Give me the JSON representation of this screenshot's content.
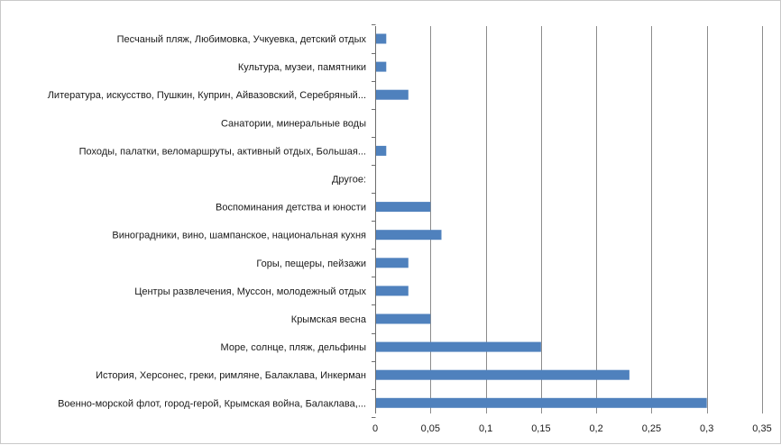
{
  "chart_data": {
    "type": "bar",
    "orientation": "horizontal",
    "title": "",
    "xlabel": "",
    "ylabel": "",
    "categories": [
      "Песчаный пляж, Любимовка, Учкуевка, детский отдых",
      "Культура, музеи, памятники",
      "Литература, искусство, Пушкин, Куприн, Айвазовский, Серебряный...",
      "Санатории, минеральные воды",
      "Походы, палатки, веломаршруты, активный отдых, Большая...",
      "Другое:",
      "Воспоминания детства и юности",
      "Виноградники, вино, шампанское, национальная кухня",
      "Горы, пещеры, пейзажи",
      "Центры развлечения, Муссон, молодежный отдых",
      "Крымская весна",
      "Море, солнце, пляж, дельфины",
      "История, Херсонес, греки, римляне, Балаклава, Инкерман",
      "Военно-морской флот, город-герой, Крымская война, Балаклава,..."
    ],
    "values": [
      0.01,
      0.01,
      0.03,
      0,
      0.01,
      0,
      0.05,
      0.06,
      0.03,
      0.03,
      0.05,
      0.15,
      0.23,
      0.3
    ],
    "xlim": [
      0,
      0.35
    ],
    "xticks": [
      0,
      0.05,
      0.1,
      0.15,
      0.2,
      0.25,
      0.3,
      0.35
    ],
    "xtick_labels": [
      "0",
      "0,05",
      "0,1",
      "0,15",
      "0,2",
      "0,25",
      "0,3",
      "0,35"
    ],
    "grid": "vertical",
    "legend": "none",
    "bar_color": "#4f81bd",
    "grid_color": "#8c8c8c"
  }
}
